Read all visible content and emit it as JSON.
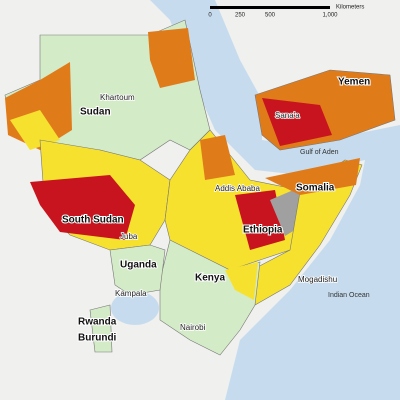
{
  "scale_bar": {
    "labels": [
      "0",
      "250",
      "500",
      "1,000"
    ],
    "unit": "Kilometers"
  },
  "countries": [
    "Sudan",
    "Yemen",
    "Somalia",
    "Ethiopia",
    "South Sudan",
    "Uganda",
    "Kenya",
    "Rwanda",
    "Burundi"
  ],
  "cities": [
    "Khartoum",
    "Sana'a",
    "Addis Ababa",
    "Juba",
    "Kampala",
    "Nairobi",
    "Mogadishu"
  ],
  "water": [
    "Gulf of Aden",
    "Indian Ocean"
  ]
}
